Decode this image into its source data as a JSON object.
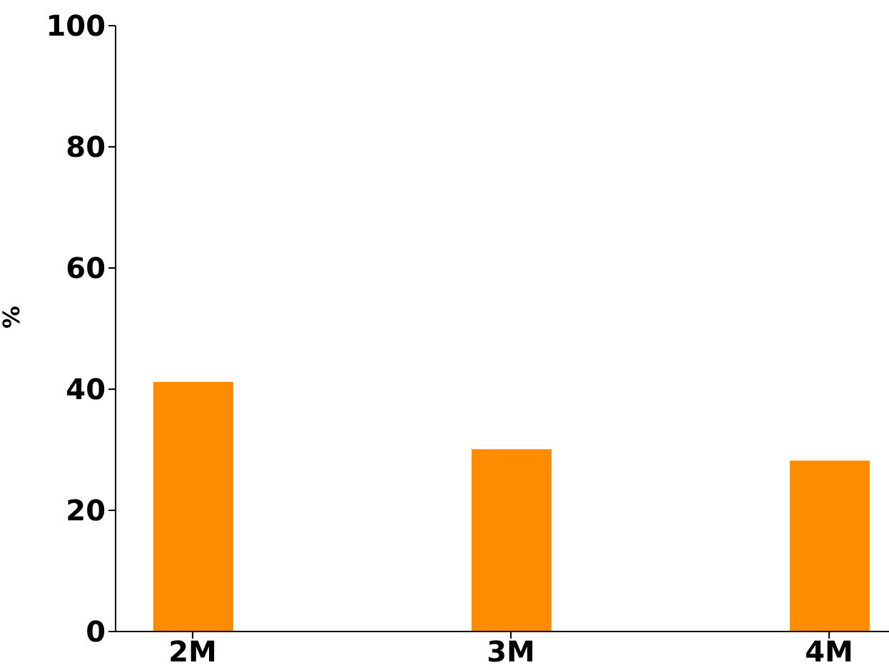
{
  "chart_data": {
    "type": "bar",
    "ylabel": "%",
    "categories": [
      "2M",
      "3M",
      "4M"
    ],
    "values": [
      41.2,
      30.1,
      28.2
    ],
    "color": "#ff8c00",
    "ylim": [
      0,
      100
    ],
    "yticks": [
      0,
      20,
      40,
      60,
      80,
      100
    ],
    "grid": false,
    "legend": false
  }
}
